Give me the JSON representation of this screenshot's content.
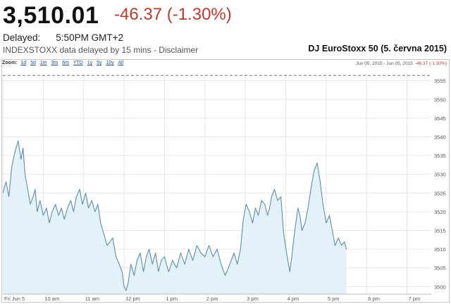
{
  "quote": {
    "price": "3,510.01",
    "change": "-46.37 (-1.30%)",
    "delayed_label": "Delayed:",
    "delayed_time": "5:50PM GMT+2",
    "source": "INDEXSTOXX data delayed by 15 mins - Disclaimer",
    "chart_title": "DJ EuroStoxx 50 (5. června 2015)"
  },
  "zoom": {
    "label": "Zoom:",
    "options": [
      "1d",
      "5d",
      "1m",
      "3m",
      "6m",
      "YTD",
      "1y",
      "5y",
      "10y",
      "All"
    ]
  },
  "range_readout": {
    "dates": "Jun 05, 2015 - Jun 05, 2015",
    "change": "-46.37 (-1.30%)"
  },
  "colors": {
    "line": "#5f8ea8",
    "fill": "#e3f1f9",
    "negative": "#c0392b",
    "grid": "#e6e6e6"
  },
  "chart_data": {
    "type": "area",
    "title": "DJ EuroStoxx 50 (5. června 2015)",
    "x_ticks": [
      {
        "h": 9,
        "label": "Fri Jun 5"
      },
      {
        "h": 10,
        "label": "10 am"
      },
      {
        "h": 11,
        "label": "11 am"
      },
      {
        "h": 12,
        "label": "12 pm"
      },
      {
        "h": 13,
        "label": "1 pm"
      },
      {
        "h": 14,
        "label": "2 pm"
      },
      {
        "h": 15,
        "label": "3 pm"
      },
      {
        "h": 16,
        "label": "4 pm"
      },
      {
        "h": 17,
        "label": "5 pm"
      },
      {
        "h": 18,
        "label": "6 pm"
      },
      {
        "h": 19,
        "label": "7 pm"
      }
    ],
    "y_ticks": [
      3500,
      3505,
      3510,
      3515,
      3520,
      3525,
      3530,
      3535,
      3540,
      3545,
      3550,
      3555
    ],
    "xlim": [
      9,
      19.6
    ],
    "ylim": [
      3498,
      3557
    ],
    "previous_close": 3556.38,
    "grid": true,
    "series": [
      {
        "x": [
          9.0,
          9.08,
          9.15,
          9.22,
          9.3,
          9.38,
          9.45,
          9.5,
          9.55,
          9.6,
          9.68,
          9.75,
          9.8,
          9.85,
          9.92,
          10.0,
          10.08,
          10.15,
          10.22,
          10.3,
          10.38,
          10.45,
          10.52,
          10.6,
          10.68,
          10.75,
          10.82,
          10.9,
          10.97,
          11.05,
          11.12,
          11.2,
          11.28,
          11.35,
          11.42,
          11.5,
          11.58,
          11.65,
          11.72,
          11.8,
          11.88,
          11.95,
          12.0,
          12.05,
          12.1,
          12.17,
          12.25,
          12.32,
          12.4,
          12.48,
          12.55,
          12.62,
          12.7,
          12.78,
          12.85,
          12.92,
          13.0,
          13.1,
          13.2,
          13.3,
          13.4,
          13.5,
          13.6,
          13.7,
          13.8,
          13.9,
          14.0,
          14.1,
          14.2,
          14.3,
          14.4,
          14.5,
          14.58,
          14.65,
          14.72,
          14.8,
          14.88,
          14.95,
          15.02,
          15.1,
          15.18,
          15.25,
          15.32,
          15.4,
          15.48,
          15.55,
          15.6,
          15.65,
          15.72,
          15.8,
          15.88,
          15.95,
          16.02,
          16.1,
          16.15,
          16.2,
          16.25,
          16.3,
          16.35,
          16.4,
          16.48,
          16.55,
          16.62,
          16.7,
          16.78,
          16.85,
          16.92,
          17.0,
          17.08,
          17.15,
          17.22,
          17.3,
          17.38,
          17.45,
          17.5
        ],
        "y": [
          3525,
          3528,
          3524,
          3532,
          3536,
          3539,
          3534,
          3537,
          3530,
          3527,
          3522,
          3524,
          3526,
          3520,
          3523,
          3519,
          3521,
          3517,
          3520,
          3522,
          3519,
          3521,
          3518,
          3521,
          3523,
          3520,
          3524,
          3526,
          3522,
          3525,
          3521,
          3523,
          3520,
          3522,
          3517,
          3514,
          3511,
          3512,
          3513,
          3508,
          3506,
          3504,
          3500,
          3499,
          3501,
          3506,
          3503,
          3507,
          3509,
          3504,
          3508,
          3510,
          3506,
          3509,
          3504,
          3507,
          3508,
          3504,
          3507,
          3505,
          3509,
          3506,
          3510,
          3507,
          3511,
          3509,
          3508,
          3511,
          3508,
          3510,
          3506,
          3503,
          3505,
          3507,
          3509,
          3506,
          3510,
          3518,
          3522,
          3520,
          3517,
          3521,
          3519,
          3523,
          3522,
          3519,
          3521,
          3524,
          3526,
          3523,
          3524,
          3514,
          3509,
          3504,
          3508,
          3513,
          3517,
          3521,
          3519,
          3515,
          3517,
          3521,
          3526,
          3531,
          3533,
          3528,
          3522,
          3517,
          3519,
          3515,
          3511,
          3513,
          3511,
          3512,
          3510
        ]
      }
    ]
  }
}
